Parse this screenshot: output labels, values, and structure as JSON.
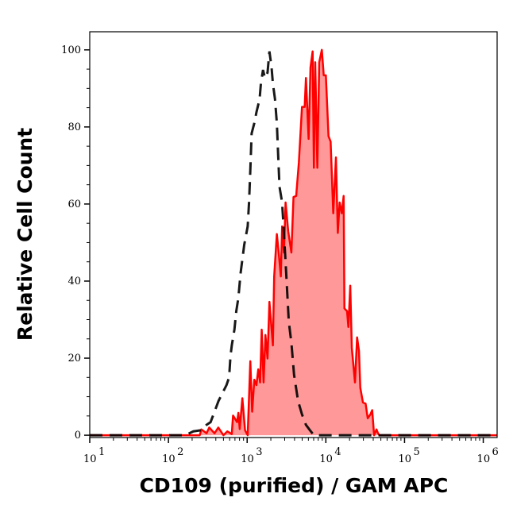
{
  "chart_data": {
    "type": "area",
    "title": "",
    "xlabel": "CD109 (purified) / GAM APC",
    "ylabel": "Relative Cell Count",
    "xscale": "log",
    "xlim": [
      10,
      1500000
    ],
    "ylim": [
      -0.6,
      104.7
    ],
    "grid": false,
    "x_ticks": [
      {
        "base": "10",
        "exp": "1",
        "value": 10
      },
      {
        "base": "10",
        "exp": "2",
        "value": 100
      },
      {
        "base": "10",
        "exp": "3",
        "value": 1000
      },
      {
        "base": "10",
        "exp": "4",
        "value": 10000
      },
      {
        "base": "10",
        "exp": "5",
        "value": 100000
      },
      {
        "base": "10",
        "exp": "6",
        "value": 1000000
      }
    ],
    "y_ticks": [
      "0",
      "20",
      "40",
      "60",
      "80",
      "100"
    ],
    "colors": {
      "stained_line": "#ff0000",
      "stained_fill": "#ff9999",
      "control_line": "#000000"
    },
    "series": [
      {
        "style": "solid-red-filled",
        "x": [
          10,
          250,
          262,
          305,
          330,
          385,
          430,
          500,
          560,
          638,
          662,
          745,
          774,
          805,
          869,
          940,
          1016,
          1097,
          1158,
          1233,
          1312,
          1384,
          1462,
          1531,
          1618,
          1707,
          1816,
          1919,
          2123,
          2205,
          2384,
          2517,
          2679,
          2782,
          2938,
          3078,
          3327,
          3648,
          3882,
          4198,
          4539,
          4977,
          5383,
          5585,
          6040,
          6383,
          6792,
          7047,
          7328,
          7798,
          8241,
          8892,
          9397,
          10000,
          10810,
          11500,
          12420,
          13430,
          14190,
          14970,
          15930,
          16830,
          17220,
          18590,
          19330,
          20420,
          21380,
          23450,
          24950,
          26360,
          27400,
          29590,
          31990,
          34040,
          36800,
          38810,
          41020,
          44000,
          46000,
          48000,
          1500000
        ],
        "y": [
          0,
          0,
          1.5,
          0.5,
          2,
          0.5,
          2,
          0,
          1,
          0.3,
          5.1,
          3.4,
          5.8,
          1.6,
          9.6,
          1.3,
          0,
          19.2,
          6.1,
          14.4,
          13.0,
          17.1,
          13.7,
          27.4,
          13.7,
          26.0,
          19.9,
          34.6,
          23.3,
          41.2,
          52.2,
          47.4,
          41.2,
          54.2,
          47.4,
          60.4,
          52.9,
          47.4,
          61.8,
          62.1,
          70.7,
          85.2,
          85.2,
          92.7,
          76.9,
          95.5,
          99.6,
          69.4,
          96.8,
          69.4,
          96.8,
          100,
          93.4,
          93.4,
          77.6,
          76.2,
          57.6,
          72.1,
          52.5,
          60.4,
          57.6,
          62.1,
          32.9,
          32.2,
          28.1,
          38.8,
          22.6,
          13.7,
          25.4,
          21.9,
          12.3,
          8.5,
          8.2,
          4.4,
          5.4,
          6.5,
          0,
          1.5,
          0.5,
          0,
          0
        ]
      },
      {
        "style": "dashed-black",
        "x": [
          10,
          164,
          207,
          261,
          305,
          343,
          385,
          433,
          546,
          590,
          614,
          638,
          689,
          728,
          774,
          824,
          918,
          1016,
          1057,
          1097,
          1140,
          1233,
          1312,
          1439,
          1496,
          1592,
          1682,
          1816,
          1919,
          2042,
          2123,
          2259,
          2384,
          2477,
          2576,
          2782,
          2938,
          3126,
          3381,
          3648,
          3945,
          4436,
          4977,
          5585,
          6281,
          7047,
          25350,
          1500000
        ],
        "y": [
          0,
          0,
          1.0,
          1.3,
          2.7,
          3.4,
          6.1,
          8.9,
          13.0,
          15.0,
          20.5,
          23.3,
          27.4,
          32.2,
          35.7,
          41.9,
          49.4,
          54.2,
          60.4,
          68.7,
          78.3,
          81.0,
          83.8,
          87.2,
          91.3,
          94.8,
          92.7,
          94.1,
          99.6,
          95.5,
          91.3,
          87.2,
          81.0,
          72.8,
          64.5,
          60.4,
          52.2,
          42.5,
          29.5,
          24.0,
          15.7,
          8.9,
          5.4,
          2.7,
          1.3,
          0,
          0,
          0
        ]
      }
    ]
  }
}
